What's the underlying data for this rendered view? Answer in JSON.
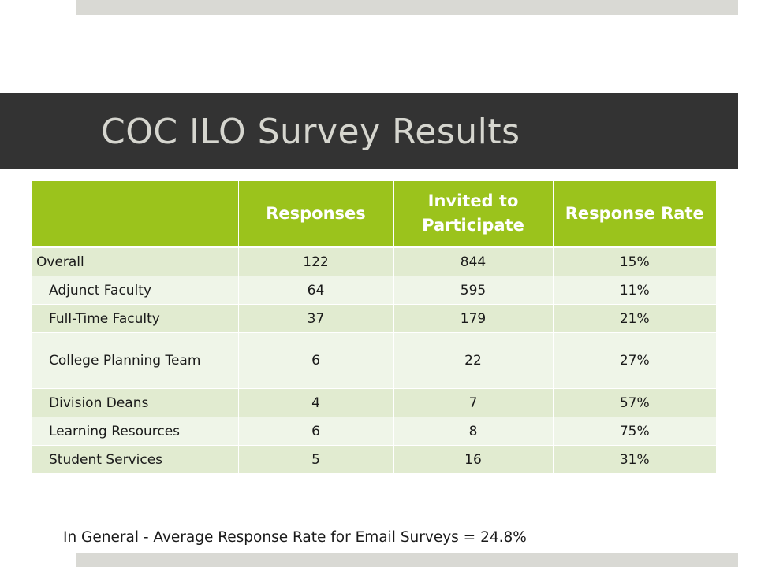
{
  "slide": {
    "title": "COC ILO Survey Results",
    "footnote": "In General - Average Response Rate for Email Surveys = 24.8%"
  },
  "table": {
    "headers": [
      "",
      "Responses",
      "Invited to Participate",
      "Response Rate"
    ],
    "rows": [
      {
        "label": "Overall",
        "responses": "122",
        "invited": "844",
        "rate": "15%"
      },
      {
        "label": "Adjunct Faculty",
        "responses": "64",
        "invited": "595",
        "rate": "11%"
      },
      {
        "label": "Full-Time Faculty",
        "responses": "37",
        "invited": "179",
        "rate": "21%"
      },
      {
        "label": "College Planning Team",
        "responses": "6",
        "invited": "22",
        "rate": "27%"
      },
      {
        "label": "Division Deans",
        "responses": "4",
        "invited": "7",
        "rate": "57%"
      },
      {
        "label": "Learning Resources",
        "responses": "6",
        "invited": "8",
        "rate": "75%"
      },
      {
        "label": "Student Services",
        "responses": "5",
        "invited": "16",
        "rate": "31%"
      }
    ]
  },
  "colors": {
    "header_green": "#9bc31c",
    "title_band": "#333333",
    "title_text": "#d6d6cf",
    "row_dark": "#e1ebd0",
    "row_light": "#eff5e8",
    "accent_bar": "#d9d9d4"
  }
}
